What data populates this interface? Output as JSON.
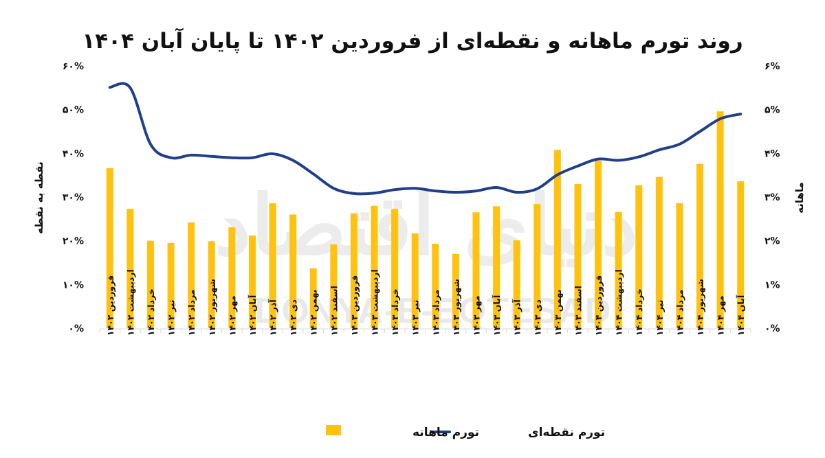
{
  "chart_data": {
    "type": "bar+line",
    "title": "روند تورم ماهانه و نقطه‌ای از فروردین ۱۴۰۲ تا پایان آبان ۱۴۰۴",
    "xlabel": "",
    "ylabel_left": "نقطه به نقطه",
    "ylabel_right": "ماهانه",
    "ylim_left": [
      0,
      60
    ],
    "ylim_right": [
      0,
      6
    ],
    "yticks_left": [
      "۰%",
      "۱۰%",
      "۲۰%",
      "۳۰%",
      "۴۰%",
      "۵۰%",
      "۶۰%"
    ],
    "yticks_right": [
      "۰%",
      "۱%",
      "۲%",
      "۳%",
      "۴%",
      "۵%",
      "۶%"
    ],
    "grid": false,
    "legend_position": "bottom",
    "categories": [
      "فروردین ۱۴۰۲",
      "اردیبهشت ۱۴۰۲",
      "خرداد ۱۴۰۲",
      "تیر ۱۴۰۲",
      "مرداد ۱۴۰۲",
      "شهریور ۱۴۰۲",
      "مهر ۱۴۰۲",
      "آبان ۱۴۰۲",
      "آذر ۱۴۰۲",
      "دی ۱۴۰۲",
      "بهمن ۱۴۰۲",
      "اسفند ۱۴۰۲",
      "فروردین ۱۴۰۳",
      "اردیبهشت ۱۴۰۳",
      "خرداد ۱۴۰۳",
      "تیر ۱۴۰۳",
      "مرداد ۱۴۰۳",
      "شهریور ۱۴۰۳",
      "مهر ۱۴۰۳",
      "آبان ۱۴۰۳",
      "آذر ۱۴۰۳",
      "دی ۱۴۰۳",
      "بهمن ۱۴۰۳",
      "اسفند ۱۴۰۳",
      "فروردین ۱۴۰۴",
      "اردیبهشت ۱۴۰۴",
      "خرداد ۱۴۰۴",
      "تیر ۱۴۰۴",
      "مرداد ۱۴۰۴",
      "شهریور ۱۴۰۴",
      "مهر ۱۴۰۴",
      "آبان ۱۴۰۴"
    ],
    "series": [
      {
        "name": "تورم ماهانه",
        "type": "bar",
        "axis": "right",
        "unit": "%",
        "color": "#FFC20E",
        "values": [
          3.66,
          2.73,
          2.0,
          1.95,
          2.42,
          1.99,
          2.31,
          2.12,
          2.86,
          2.6,
          1.37,
          1.92,
          2.62,
          2.8,
          2.73,
          2.17,
          1.93,
          1.7,
          2.65,
          2.79,
          2.01,
          2.84,
          4.08,
          3.3,
          3.83,
          2.66,
          3.27,
          3.46,
          2.86,
          3.76,
          4.96,
          3.36
        ]
      },
      {
        "name": "تورم نقطه‌ای",
        "type": "line",
        "axis": "left",
        "unit": "%",
        "color": "#1F3F8A",
        "values": [
          55.1,
          55.0,
          42.1,
          39.0,
          39.6,
          39.3,
          39.0,
          39.0,
          39.9,
          38.4,
          35.3,
          32.0,
          30.8,
          30.9,
          31.7,
          32.0,
          31.4,
          31.1,
          31.4,
          32.2,
          31.1,
          31.9,
          35.1,
          37.1,
          38.7,
          38.4,
          39.2,
          40.8,
          42.1,
          45.0,
          47.9,
          49.0
        ]
      }
    ]
  },
  "legend": {
    "items": [
      {
        "label": "تورم نقطه‌ای",
        "swatch": "line",
        "color": "#1F3F8A"
      },
      {
        "label": "تورم ماهانه",
        "swatch": "square",
        "color": "#FFC20E"
      }
    ]
  },
  "watermark": {
    "latin": "DONYA-E-EQTESAD",
    "persian": "دنیای اقتصاد"
  }
}
